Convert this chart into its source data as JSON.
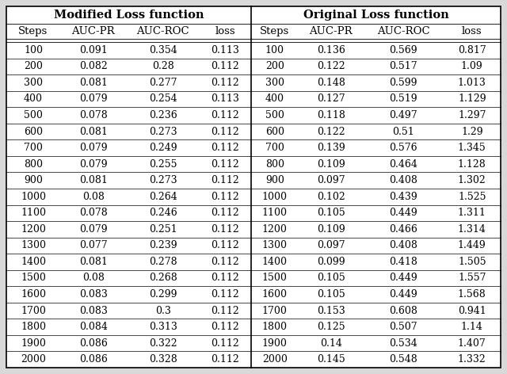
{
  "title_left": "Modified Loss function",
  "title_right": "Original Loss function",
  "col_headers": [
    "Steps",
    "AUC-PR",
    "AUC-ROC",
    "loss",
    "Steps",
    "AUC-PR",
    "AUC-ROC",
    "loss"
  ],
  "rows": [
    [
      "100",
      "0.091",
      "0.354",
      "0.113",
      "100",
      "0.136",
      "0.569",
      "0.817"
    ],
    [
      "200",
      "0.082",
      "0.28",
      "0.112",
      "200",
      "0.122",
      "0.517",
      "1.09"
    ],
    [
      "300",
      "0.081",
      "0.277",
      "0.112",
      "300",
      "0.148",
      "0.599",
      "1.013"
    ],
    [
      "400",
      "0.079",
      "0.254",
      "0.113",
      "400",
      "0.127",
      "0.519",
      "1.129"
    ],
    [
      "500",
      "0.078",
      "0.236",
      "0.112",
      "500",
      "0.118",
      "0.497",
      "1.297"
    ],
    [
      "600",
      "0.081",
      "0.273",
      "0.112",
      "600",
      "0.122",
      "0.51",
      "1.29"
    ],
    [
      "700",
      "0.079",
      "0.249",
      "0.112",
      "700",
      "0.139",
      "0.576",
      "1.345"
    ],
    [
      "800",
      "0.079",
      "0.255",
      "0.112",
      "800",
      "0.109",
      "0.464",
      "1.128"
    ],
    [
      "900",
      "0.081",
      "0.273",
      "0.112",
      "900",
      "0.097",
      "0.408",
      "1.302"
    ],
    [
      "1000",
      "0.08",
      "0.264",
      "0.112",
      "1000",
      "0.102",
      "0.439",
      "1.525"
    ],
    [
      "1100",
      "0.078",
      "0.246",
      "0.112",
      "1100",
      "0.105",
      "0.449",
      "1.311"
    ],
    [
      "1200",
      "0.079",
      "0.251",
      "0.112",
      "1200",
      "0.109",
      "0.466",
      "1.314"
    ],
    [
      "1300",
      "0.077",
      "0.239",
      "0.112",
      "1300",
      "0.097",
      "0.408",
      "1.449"
    ],
    [
      "1400",
      "0.081",
      "0.278",
      "0.112",
      "1400",
      "0.099",
      "0.418",
      "1.505"
    ],
    [
      "1500",
      "0.08",
      "0.268",
      "0.112",
      "1500",
      "0.105",
      "0.449",
      "1.557"
    ],
    [
      "1600",
      "0.083",
      "0.299",
      "0.112",
      "1600",
      "0.105",
      "0.449",
      "1.568"
    ],
    [
      "1700",
      "0.083",
      "0.3",
      "0.112",
      "1700",
      "0.153",
      "0.608",
      "0.941"
    ],
    [
      "1800",
      "0.084",
      "0.313",
      "0.112",
      "1800",
      "0.125",
      "0.507",
      "1.14"
    ],
    [
      "1900",
      "0.086",
      "0.322",
      "0.112",
      "1900",
      "0.14",
      "0.534",
      "1.407"
    ],
    [
      "2000",
      "0.086",
      "0.328",
      "0.112",
      "2000",
      "0.145",
      "0.548",
      "1.332"
    ]
  ],
  "font_size": 9.0,
  "header_font_size": 9.5,
  "title_font_size": 10.5,
  "bg_color": "#d8d8d8",
  "table_bg": "#ffffff",
  "line_color": "#000000",
  "font_family": "DejaVu Serif"
}
